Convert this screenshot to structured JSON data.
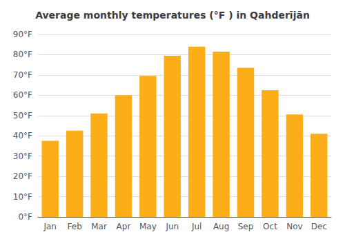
{
  "chart_data": {
    "type": "bar",
    "title": "Average monthly temperatures (°F ) in Qahderījān",
    "categories": [
      "Jan",
      "Feb",
      "Mar",
      "Apr",
      "May",
      "Jun",
      "Jul",
      "Aug",
      "Sep",
      "Oct",
      "Nov",
      "Dec"
    ],
    "values": [
      37.5,
      42.5,
      51.0,
      60.0,
      69.5,
      79.5,
      84.0,
      81.5,
      73.5,
      62.5,
      50.5,
      41.0
    ],
    "color": "#FBAE17",
    "ylim": [
      0,
      90
    ],
    "yticks": [
      {
        "value": 0,
        "label": "0°F"
      },
      {
        "value": 10,
        "label": "10°F"
      },
      {
        "value": 20,
        "label": "20°F"
      },
      {
        "value": 30,
        "label": "30°F"
      },
      {
        "value": 40,
        "label": "40°F"
      },
      {
        "value": 50,
        "label": "50°F"
      },
      {
        "value": 60,
        "label": "60°F"
      },
      {
        "value": 70,
        "label": "70°F"
      },
      {
        "value": 80,
        "label": "80°F"
      },
      {
        "value": 90,
        "label": "90°F"
      }
    ],
    "grid": true
  }
}
